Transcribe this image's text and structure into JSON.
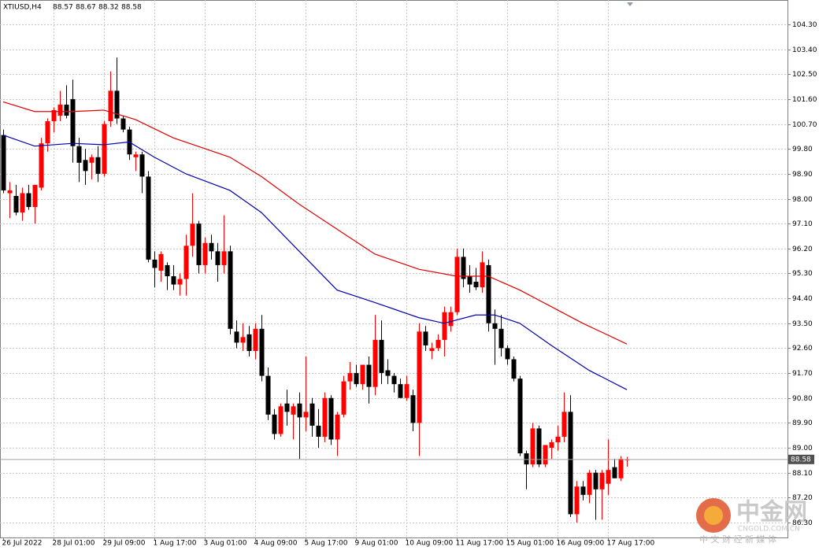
{
  "chart_data": {
    "type": "candlestick",
    "title": "XTIUSD,H4",
    "categories": [
      "26 Jul 2022",
      null,
      null,
      null,
      null,
      null,
      null,
      null,
      "28 Jul 01:00",
      null,
      null,
      null,
      null,
      null,
      null,
      null,
      "29 Jul 09:00",
      null,
      null,
      null,
      null,
      null,
      null,
      null,
      "1 Aug 17:00",
      null,
      null,
      null,
      null,
      null,
      null,
      null,
      "3 Aug 01:00",
      null,
      null,
      null,
      null,
      null,
      null,
      null,
      "4 Aug 09:00",
      null,
      null,
      null,
      null,
      null,
      null,
      null,
      "5 Aug 17:00",
      null,
      null,
      null,
      null,
      null,
      null,
      null,
      "9 Aug 01:00",
      null,
      null,
      null,
      null,
      null,
      null,
      null,
      "10 Aug 09:00",
      null,
      null,
      null,
      null,
      null,
      null,
      null,
      "11 Aug 17:00",
      null,
      null,
      null,
      null,
      null,
      null,
      null,
      "15 Aug 01:00",
      null,
      null,
      null,
      null,
      null,
      null,
      null,
      "16 Aug 09:00",
      null,
      null,
      null,
      null,
      null,
      null,
      null,
      "17 Aug 17:00",
      null,
      null,
      null
    ],
    "open": [
      100.3,
      98.2,
      98.1,
      97.5,
      98.2,
      97.7,
      98.4,
      100.0,
      100.8,
      101.0,
      101.4,
      101.6,
      99.9,
      99.4,
      99.3,
      99.5,
      98.9,
      100.8,
      101.9,
      100.9,
      100.5,
      99.5,
      99.6,
      98.8,
      95.8,
      95.4,
      95.6,
      95.2,
      94.9,
      95.1,
      96.3,
      97.1,
      95.6,
      96.4,
      96.1,
      95.6,
      96.1,
      93.2,
      92.8,
      93.1,
      92.5,
      93.3,
      91.6,
      90.2,
      89.5,
      90.6,
      90.2,
      90.6,
      90.1,
      90.6,
      89.8,
      89.4,
      90.8,
      89.3,
      90.2,
      91.4,
      91.7,
      91.3,
      92.0,
      91.2,
      92.9,
      91.8,
      91.6,
      91.3,
      90.8,
      90.9,
      89.9,
      93.2,
      92.5,
      92.6,
      92.9,
      93.4,
      93.9,
      95.9,
      95.2,
      95.0,
      94.8,
      95.6,
      93.5,
      93.3,
      92.6,
      92.2,
      91.5,
      88.8,
      88.4,
      89.7,
      88.4,
      89.0,
      89.2,
      89.4,
      90.3,
      86.6,
      87.6,
      87.3,
      88.1,
      87.5,
      87.7,
      88.3,
      87.9,
      88.57
    ],
    "high": [
      100.5,
      98.6,
      98.5,
      98.4,
      98.5,
      98.5,
      100.2,
      100.9,
      101.3,
      101.9,
      102.1,
      102.3,
      100.2,
      99.8,
      99.6,
      99.9,
      100.8,
      102.6,
      103.1,
      101.0,
      100.6,
      99.7,
      99.7,
      99.0,
      96.1,
      96.1,
      95.7,
      95.6,
      95.3,
      96.7,
      98.2,
      97.2,
      96.6,
      96.7,
      96.4,
      97.4,
      96.3,
      93.6,
      93.5,
      93.4,
      93.5,
      93.8,
      91.9,
      90.4,
      90.6,
      91.1,
      90.6,
      91.0,
      92.3,
      90.8,
      90.4,
      91.0,
      90.9,
      90.3,
      91.6,
      92.1,
      92.0,
      92.0,
      92.3,
      93.8,
      93.6,
      92.2,
      91.7,
      91.5,
      91.6,
      91.1,
      93.5,
      93.4,
      92.8,
      93.1,
      94.1,
      94.1,
      96.2,
      96.2,
      95.6,
      95.5,
      96.1,
      95.8,
      94.0,
      93.8,
      92.7,
      92.3,
      91.6,
      88.9,
      89.9,
      89.8,
      89.1,
      89.3,
      89.8,
      91.0,
      90.9,
      87.8,
      87.8,
      88.2,
      88.2,
      88.2,
      89.3,
      88.6,
      88.7,
      88.67
    ],
    "low": [
      98.2,
      97.3,
      97.4,
      97.2,
      97.6,
      97.1,
      98.3,
      99.7,
      100.4,
      100.8,
      100.9,
      99.3,
      98.6,
      98.5,
      98.7,
      98.6,
      98.8,
      100.6,
      100.7,
      100.4,
      99.4,
      99.0,
      98.2,
      95.7,
      94.8,
      95.0,
      94.7,
      94.7,
      94.5,
      94.5,
      95.9,
      95.3,
      95.3,
      95.8,
      95.0,
      95.3,
      93.1,
      92.6,
      92.5,
      92.3,
      92.2,
      91.4,
      90.0,
      89.3,
      89.4,
      89.8,
      89.3,
      88.6,
      89.6,
      89.4,
      89.0,
      89.2,
      89.1,
      88.7,
      90.1,
      91.1,
      91.2,
      91.1,
      90.6,
      90.9,
      91.3,
      91.3,
      91.0,
      90.8,
      90.7,
      89.6,
      88.7,
      92.5,
      92.2,
      92.5,
      92.3,
      93.2,
      93.8,
      94.8,
      94.6,
      94.7,
      94.6,
      93.2,
      92.0,
      92.3,
      92.0,
      91.4,
      88.7,
      87.5,
      88.3,
      88.3,
      88.3,
      88.6,
      88.9,
      89.2,
      86.5,
      86.3,
      87.1,
      87.0,
      86.4,
      86.4,
      87.3,
      87.9,
      87.8,
      88.32
    ],
    "close": [
      98.3,
      98.3,
      97.5,
      98.2,
      97.7,
      98.5,
      100.0,
      100.8,
      101.2,
      101.4,
      101.0,
      99.9,
      99.3,
      99.0,
      99.5,
      98.9,
      100.7,
      101.9,
      100.9,
      100.5,
      99.6,
      99.6,
      98.8,
      95.8,
      95.5,
      96.0,
      95.2,
      94.9,
      95.1,
      96.3,
      97.1,
      95.6,
      96.4,
      96.1,
      95.6,
      96.1,
      93.3,
      92.8,
      93.0,
      92.5,
      93.3,
      91.6,
      90.2,
      89.5,
      90.5,
      90.3,
      90.5,
      90.1,
      90.3,
      89.8,
      89.4,
      90.8,
      89.3,
      90.2,
      91.4,
      91.7,
      91.3,
      92.0,
      91.2,
      92.9,
      91.7,
      91.6,
      91.3,
      90.8,
      91.3,
      89.9,
      93.2,
      92.7,
      92.6,
      92.9,
      93.9,
      93.9,
      95.9,
      95.1,
      94.9,
      94.8,
      95.7,
      93.5,
      93.3,
      92.6,
      92.2,
      91.5,
      88.8,
      88.4,
      89.7,
      88.4,
      89.1,
      89.2,
      89.4,
      90.3,
      86.6,
      87.6,
      87.3,
      88.1,
      87.5,
      88.1,
      88.2,
      87.9,
      88.6,
      88.58
    ],
    "up_color": "#ff0000",
    "down_color": "#000000",
    "series": [
      {
        "color": "#e00000",
        "x": [
          0,
          5,
          11,
          16,
          21,
          27,
          36,
          41,
          47,
          53,
          59,
          66,
          72,
          77,
          82,
          87,
          92,
          99
        ],
        "values": [
          101.5,
          101.15,
          101.15,
          101.2,
          100.86,
          100.2,
          99.5,
          98.8,
          97.8,
          96.9,
          96.0,
          95.45,
          95.2,
          95.2,
          94.7,
          94.1,
          93.5,
          92.75
        ]
      },
      {
        "color": "#0000b0",
        "x": [
          0,
          5,
          11,
          16,
          20,
          24,
          29,
          36,
          41,
          47,
          53,
          59,
          66,
          70,
          75,
          78,
          82,
          87,
          93,
          99
        ],
        "values": [
          100.3,
          99.9,
          100.0,
          99.95,
          100.05,
          99.5,
          98.9,
          98.3,
          97.5,
          96.1,
          94.7,
          94.25,
          93.7,
          93.5,
          93.8,
          93.8,
          93.5,
          92.7,
          91.8,
          91.1
        ]
      }
    ],
    "ylim": [
      85.76,
      105.18
    ],
    "yticks": [
      {
        "value": 104.3,
        "label": "104.30"
      },
      {
        "value": 103.4,
        "label": "103.40"
      },
      {
        "value": 102.5,
        "label": "102.50"
      },
      {
        "value": 101.6,
        "label": "101.60"
      },
      {
        "value": 100.7,
        "label": "100.70"
      },
      {
        "value": 99.8,
        "label": "99.80"
      },
      {
        "value": 98.9,
        "label": "98.90"
      },
      {
        "value": 98.0,
        "label": "98.00"
      },
      {
        "value": 97.1,
        "label": "97.10"
      },
      {
        "value": 96.2,
        "label": "96.20"
      },
      {
        "value": 95.3,
        "label": "95.30"
      },
      {
        "value": 94.4,
        "label": "94.40"
      },
      {
        "value": 93.5,
        "label": "93.50"
      },
      {
        "value": 92.6,
        "label": "92.60"
      },
      {
        "value": 91.7,
        "label": "91.70"
      },
      {
        "value": 90.8,
        "label": "90.80"
      },
      {
        "value": 89.9,
        "label": "89.90"
      },
      {
        "value": 89.0,
        "label": "89.00"
      },
      {
        "value": 88.1,
        "label": "88.10"
      },
      {
        "value": 87.2,
        "label": "87.20"
      },
      {
        "value": 86.3,
        "label": "86.30"
      }
    ],
    "last_price": 88.58,
    "grid": true,
    "watermark": {
      "name": "中金网",
      "site": "CNGOLD.COM.CN",
      "slogan": "中 文 财 经 新 媒 体"
    }
  }
}
